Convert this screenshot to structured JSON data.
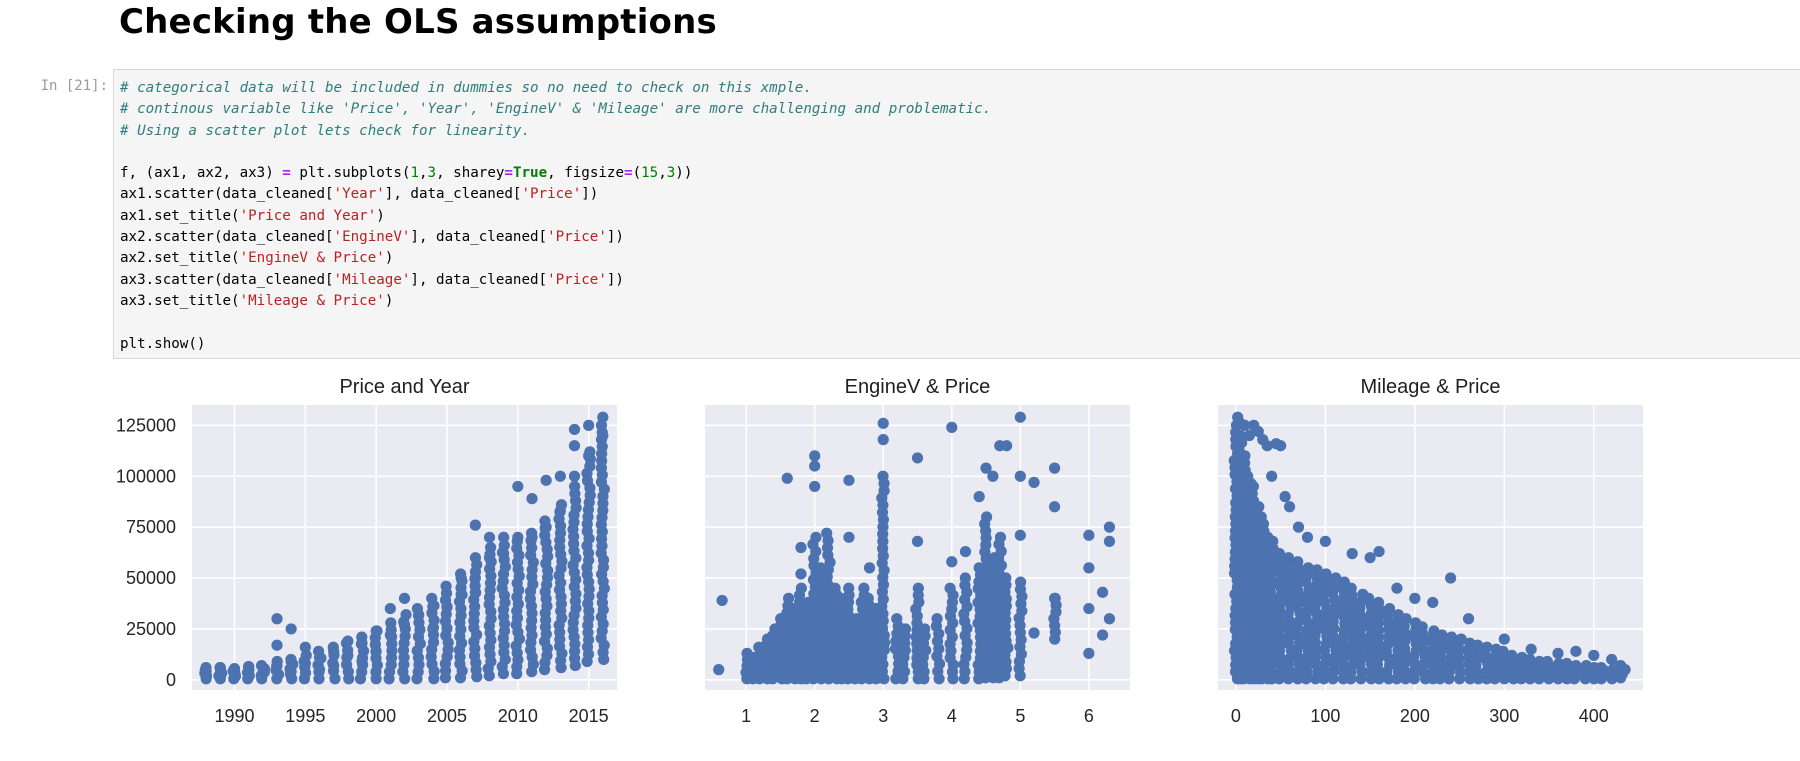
{
  "heading": "Checking the OLS assumptions",
  "cell": {
    "prompt": "In [21]:",
    "code_lines": [
      [
        {
          "t": "# categorical data will be included in dummies so no need to check on this xmple.",
          "c": "cm"
        }
      ],
      [
        {
          "t": "# continous variable like 'Price', 'Year', 'EngineV' & 'Mileage' are more challenging and problematic.",
          "c": "cm"
        }
      ],
      [
        {
          "t": "# Using a scatter plot lets check for linearity.",
          "c": "cm"
        }
      ],
      [],
      [
        {
          "t": "f, (ax1, ax2, ax3) "
        },
        {
          "t": "=",
          "c": "op"
        },
        {
          "t": " plt.subplots("
        },
        {
          "t": "1",
          "c": "num"
        },
        {
          "t": ","
        },
        {
          "t": "3",
          "c": "num"
        },
        {
          "t": ", sharey"
        },
        {
          "t": "=",
          "c": "op"
        },
        {
          "t": "True",
          "c": "kw"
        },
        {
          "t": ", figsize"
        },
        {
          "t": "=",
          "c": "op"
        },
        {
          "t": "("
        },
        {
          "t": "15",
          "c": "num"
        },
        {
          "t": ","
        },
        {
          "t": "3",
          "c": "num"
        },
        {
          "t": "))"
        }
      ],
      [
        {
          "t": "ax1.scatter(data_cleaned["
        },
        {
          "t": "'Year'",
          "c": "str"
        },
        {
          "t": "], data_cleaned["
        },
        {
          "t": "'Price'",
          "c": "str"
        },
        {
          "t": "])"
        }
      ],
      [
        {
          "t": "ax1.set_title("
        },
        {
          "t": "'Price and Year'",
          "c": "str"
        },
        {
          "t": ")"
        }
      ],
      [
        {
          "t": "ax2.scatter(data_cleaned["
        },
        {
          "t": "'EngineV'",
          "c": "str"
        },
        {
          "t": "], data_cleaned["
        },
        {
          "t": "'Price'",
          "c": "str"
        },
        {
          "t": "])"
        }
      ],
      [
        {
          "t": "ax2.set_title("
        },
        {
          "t": "'EngineV & Price'",
          "c": "str"
        },
        {
          "t": ")"
        }
      ],
      [
        {
          "t": "ax3.scatter(data_cleaned["
        },
        {
          "t": "'Mileage'",
          "c": "str"
        },
        {
          "t": "], data_cleaned["
        },
        {
          "t": "'Price'",
          "c": "str"
        },
        {
          "t": "])"
        }
      ],
      [
        {
          "t": "ax3.set_title("
        },
        {
          "t": "'Mileage & Price'",
          "c": "str"
        },
        {
          "t": ")"
        }
      ],
      [],
      [
        {
          "t": "plt.show()"
        }
      ]
    ]
  },
  "chart_data": [
    {
      "type": "scatter",
      "title": "Price and Year",
      "xlabel": "",
      "ylabel": "",
      "xlim": [
        1987,
        2017
      ],
      "ylim": [
        -5000,
        135000
      ],
      "xticks": [
        1990,
        1995,
        2000,
        2005,
        2010,
        2015
      ],
      "yticks": [
        0,
        25000,
        50000,
        75000,
        100000,
        125000
      ],
      "grid": true,
      "color": "#4c72b0",
      "background": "#eaeaf2",
      "points": [
        [
          1988,
          4000
        ],
        [
          1988,
          2000
        ],
        [
          1989,
          6000
        ],
        [
          1989,
          3000
        ],
        [
          1990,
          5000
        ],
        [
          1991,
          6500
        ],
        [
          1991,
          3000
        ],
        [
          1992,
          6000
        ],
        [
          1993,
          30000
        ],
        [
          1993,
          17000
        ],
        [
          1993,
          7000
        ],
        [
          1994,
          25000
        ],
        [
          1994,
          9000
        ],
        [
          1994,
          4000
        ],
        [
          1995,
          16000
        ],
        [
          1995,
          8000
        ],
        [
          1996,
          11000
        ],
        [
          1996,
          5000
        ],
        [
          1997,
          14000
        ],
        [
          1997,
          7000
        ],
        [
          1998,
          19000
        ],
        [
          1998,
          12000
        ],
        [
          1999,
          18000
        ],
        [
          1999,
          9000
        ],
        [
          2000,
          24000
        ],
        [
          2000,
          14000
        ],
        [
          2001,
          35000
        ],
        [
          2001,
          22000
        ],
        [
          2002,
          40000
        ],
        [
          2002,
          27000
        ],
        [
          2003,
          32000
        ],
        [
          2004,
          36000
        ],
        [
          2004,
          25000
        ],
        [
          2005,
          36000
        ],
        [
          2006,
          50000
        ],
        [
          2006,
          42000
        ],
        [
          2007,
          76000
        ],
        [
          2007,
          50000
        ],
        [
          2007,
          43000
        ],
        [
          2008,
          70000
        ],
        [
          2008,
          60000
        ],
        [
          2009,
          70000
        ],
        [
          2009,
          62000
        ],
        [
          2010,
          95000
        ],
        [
          2010,
          70000
        ],
        [
          2011,
          89000
        ],
        [
          2011,
          70000
        ],
        [
          2012,
          98000
        ],
        [
          2012,
          75000
        ],
        [
          2013,
          100000
        ],
        [
          2013,
          83000
        ],
        [
          2014,
          123000
        ],
        [
          2014,
          115000
        ],
        [
          2014,
          100000
        ],
        [
          2015,
          125000
        ],
        [
          2015,
          110000
        ],
        [
          2016,
          129000
        ],
        [
          2016,
          120000
        ]
      ],
      "column_ranges": [
        [
          1988,
          500,
          6000
        ],
        [
          1989,
          500,
          6000
        ],
        [
          1990,
          500,
          5500
        ],
        [
          1991,
          500,
          6500
        ],
        [
          1992,
          500,
          7000
        ],
        [
          1993,
          500,
          9000
        ],
        [
          1994,
          500,
          10000
        ],
        [
          1995,
          500,
          12000
        ],
        [
          1996,
          500,
          14000
        ],
        [
          1997,
          500,
          16000
        ],
        [
          1998,
          500,
          18000
        ],
        [
          1999,
          500,
          21000
        ],
        [
          2000,
          500,
          24000
        ],
        [
          2001,
          500,
          28000
        ],
        [
          2002,
          500,
          32000
        ],
        [
          2003,
          500,
          35000
        ],
        [
          2004,
          500,
          40000
        ],
        [
          2005,
          1000,
          46000
        ],
        [
          2006,
          1000,
          52000
        ],
        [
          2007,
          1500,
          60000
        ],
        [
          2008,
          2000,
          65000
        ],
        [
          2009,
          3000,
          66000
        ],
        [
          2010,
          3000,
          68000
        ],
        [
          2011,
          4000,
          72000
        ],
        [
          2012,
          5000,
          78000
        ],
        [
          2013,
          6000,
          86000
        ],
        [
          2014,
          7000,
          95000
        ],
        [
          2015,
          9000,
          112000
        ],
        [
          2016,
          10000,
          125000
        ]
      ]
    },
    {
      "type": "scatter",
      "title": "EngineV & Price",
      "xlabel": "",
      "ylabel": "",
      "xlim": [
        0.4,
        6.6
      ],
      "ylim": [
        -5000,
        135000
      ],
      "xticks": [
        1,
        2,
        3,
        4,
        5,
        6
      ],
      "yticks": [
        0,
        25000,
        50000,
        75000,
        100000,
        125000
      ],
      "grid": true,
      "color": "#4c72b0",
      "background": "#eaeaf2",
      "points": [
        [
          0.6,
          5000
        ],
        [
          0.65,
          39000
        ],
        [
          1.6,
          99000
        ],
        [
          1.8,
          65000
        ],
        [
          1.8,
          52000
        ],
        [
          2.0,
          110000
        ],
        [
          2.0,
          105000
        ],
        [
          2.0,
          95000
        ],
        [
          2.5,
          98000
        ],
        [
          2.5,
          70000
        ],
        [
          2.8,
          55000
        ],
        [
          3.0,
          126000
        ],
        [
          3.0,
          118000
        ],
        [
          3.5,
          109000
        ],
        [
          3.5,
          68000
        ],
        [
          4.0,
          124000
        ],
        [
          4.0,
          58000
        ],
        [
          4.2,
          63000
        ],
        [
          4.4,
          90000
        ],
        [
          4.5,
          104000
        ],
        [
          4.6,
          100000
        ],
        [
          4.7,
          115000
        ],
        [
          4.8,
          115000
        ],
        [
          5.0,
          129000
        ],
        [
          5.0,
          100000
        ],
        [
          5.0,
          71000
        ],
        [
          5.2,
          97000
        ],
        [
          5.2,
          23000
        ],
        [
          5.5,
          104000
        ],
        [
          5.5,
          85000
        ],
        [
          5.5,
          40000
        ],
        [
          6.0,
          71000
        ],
        [
          6.0,
          55000
        ],
        [
          6.0,
          35000
        ],
        [
          6.0,
          13000
        ],
        [
          6.2,
          43000
        ],
        [
          6.2,
          22000
        ],
        [
          6.3,
          75000
        ],
        [
          6.3,
          68000
        ],
        [
          6.3,
          30000
        ]
      ],
      "column_ranges": [
        [
          1.0,
          500,
          13000
        ],
        [
          1.1,
          500,
          11000
        ],
        [
          1.2,
          500,
          16000
        ],
        [
          1.3,
          500,
          20000
        ],
        [
          1.4,
          500,
          25000
        ],
        [
          1.5,
          500,
          30000
        ],
        [
          1.6,
          500,
          40000
        ],
        [
          1.7,
          500,
          35000
        ],
        [
          1.8,
          500,
          45000
        ],
        [
          1.9,
          500,
          38000
        ],
        [
          2.0,
          500,
          70000
        ],
        [
          2.1,
          500,
          55000
        ],
        [
          2.2,
          500,
          72000
        ],
        [
          2.3,
          500,
          45000
        ],
        [
          2.4,
          500,
          40000
        ],
        [
          2.5,
          500,
          45000
        ],
        [
          2.6,
          500,
          30000
        ],
        [
          2.7,
          500,
          45000
        ],
        [
          2.8,
          500,
          40000
        ],
        [
          2.9,
          500,
          35000
        ],
        [
          3.0,
          500,
          100000
        ],
        [
          3.2,
          500,
          30000
        ],
        [
          3.3,
          500,
          25000
        ],
        [
          3.5,
          500,
          45000
        ],
        [
          3.6,
          500,
          25000
        ],
        [
          3.8,
          500,
          30000
        ],
        [
          4.0,
          500,
          45000
        ],
        [
          4.2,
          500,
          50000
        ],
        [
          4.4,
          500,
          55000
        ],
        [
          4.5,
          1000,
          80000
        ],
        [
          4.6,
          1000,
          60000
        ],
        [
          4.7,
          1000,
          70000
        ],
        [
          4.8,
          2000,
          50000
        ],
        [
          5.0,
          2000,
          48000
        ],
        [
          5.5,
          20000,
          40000
        ]
      ]
    },
    {
      "type": "scatter",
      "title": "Mileage & Price",
      "xlabel": "",
      "ylabel": "",
      "xlim": [
        -20,
        455
      ],
      "ylim": [
        -5000,
        135000
      ],
      "xticks": [
        0,
        100,
        200,
        300,
        400
      ],
      "yticks": [
        0,
        25000,
        50000,
        75000,
        100000,
        125000
      ],
      "grid": true,
      "color": "#4c72b0",
      "background": "#eaeaf2",
      "points": [
        [
          2,
          129000
        ],
        [
          5,
          126000
        ],
        [
          10,
          125000
        ],
        [
          15,
          120000
        ],
        [
          20,
          125000
        ],
        [
          25,
          122000
        ],
        [
          30,
          118000
        ],
        [
          35,
          115000
        ],
        [
          45,
          116000
        ],
        [
          50,
          115000
        ],
        [
          40,
          100000
        ],
        [
          55,
          90000
        ],
        [
          60,
          85000
        ],
        [
          70,
          75000
        ],
        [
          80,
          70000
        ],
        [
          100,
          68000
        ],
        [
          130,
          62000
        ],
        [
          150,
          60000
        ],
        [
          160,
          63000
        ],
        [
          240,
          50000
        ],
        [
          180,
          45000
        ],
        [
          200,
          40000
        ],
        [
          220,
          38000
        ],
        [
          260,
          30000
        ],
        [
          300,
          20000
        ],
        [
          330,
          15000
        ],
        [
          360,
          13000
        ],
        [
          380,
          14000
        ],
        [
          400,
          12000
        ],
        [
          420,
          10000
        ],
        [
          430,
          7000
        ],
        [
          435,
          5000
        ]
      ],
      "column_ranges": [
        [
          0,
          500,
          125000
        ],
        [
          5,
          500,
          120000
        ],
        [
          10,
          500,
          110000
        ],
        [
          15,
          500,
          100000
        ],
        [
          20,
          500,
          95000
        ],
        [
          25,
          500,
          85000
        ],
        [
          30,
          500,
          80000
        ],
        [
          35,
          500,
          70000
        ],
        [
          40,
          500,
          68000
        ],
        [
          50,
          500,
          62000
        ],
        [
          60,
          500,
          60000
        ],
        [
          70,
          500,
          58000
        ],
        [
          80,
          500,
          55000
        ],
        [
          90,
          500,
          54000
        ],
        [
          100,
          500,
          52000
        ],
        [
          110,
          500,
          50000
        ],
        [
          120,
          500,
          48000
        ],
        [
          130,
          500,
          45000
        ],
        [
          140,
          500,
          42000
        ],
        [
          150,
          500,
          40000
        ],
        [
          160,
          500,
          38000
        ],
        [
          170,
          500,
          35000
        ],
        [
          180,
          500,
          32000
        ],
        [
          190,
          500,
          30000
        ],
        [
          200,
          500,
          28000
        ],
        [
          210,
          500,
          26000
        ],
        [
          220,
          500,
          24000
        ],
        [
          230,
          500,
          22000
        ],
        [
          240,
          500,
          21000
        ],
        [
          250,
          500,
          20000
        ],
        [
          260,
          500,
          18000
        ],
        [
          270,
          500,
          17000
        ],
        [
          280,
          500,
          16000
        ],
        [
          290,
          500,
          15000
        ],
        [
          300,
          500,
          14000
        ],
        [
          310,
          500,
          12000
        ],
        [
          320,
          500,
          11000
        ],
        [
          330,
          500,
          10000
        ],
        [
          340,
          500,
          9000
        ],
        [
          350,
          500,
          9000
        ],
        [
          360,
          500,
          8000
        ],
        [
          370,
          500,
          8000
        ],
        [
          380,
          500,
          7000
        ],
        [
          390,
          500,
          7000
        ],
        [
          400,
          500,
          6000
        ],
        [
          410,
          500,
          6000
        ],
        [
          420,
          500,
          5000
        ],
        [
          430,
          1000,
          4500
        ]
      ]
    }
  ]
}
